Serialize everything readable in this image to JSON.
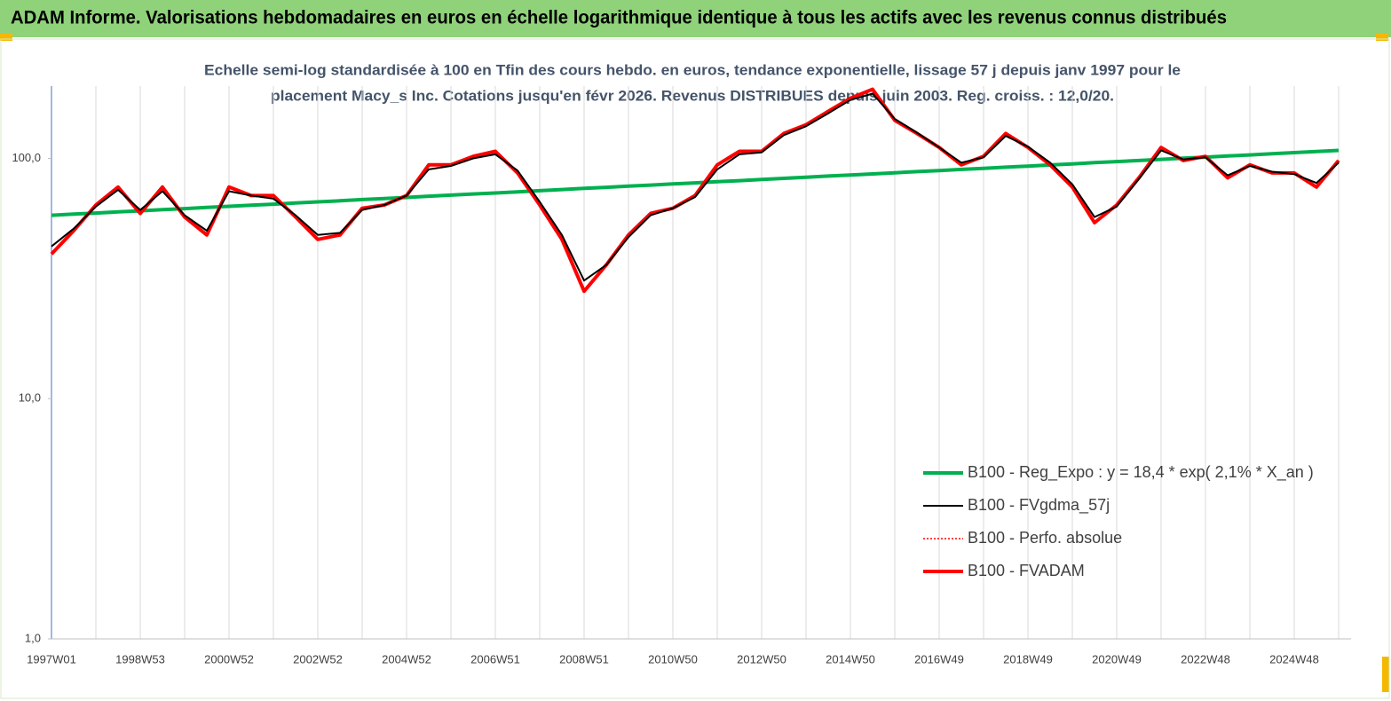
{
  "chart_data": {
    "type": "line",
    "header": "ADAM Informe. Valorisations hebdomadaires en euros en échelle logarithmique identique à tous les actifs avec les revenus connus distribués",
    "subtitle": [
      "Echelle semi-log standardisée à 100 en Tfin des cours hebdo. en euros, tendance exponentielle, lissage 57 j depuis janv 1997 pour le",
      "placement Macy_s Inc. Cotations jusqu'en févr 2026. Revenus DISTRIBUES depuis juin 2003. Reg. croiss. : 12,0/20."
    ],
    "log_scale": true,
    "grid": "x",
    "legend": "bottom-right",
    "ylim": [
      1,
      200
    ],
    "yticks": [
      {
        "value": 1,
        "label": "1,0"
      },
      {
        "value": 10,
        "label": "10,0"
      },
      {
        "value": 100,
        "label": "100,0"
      }
    ],
    "categories": [
      "1997W01",
      null,
      null,
      null,
      "1998W53",
      null,
      null,
      null,
      "2000W52",
      null,
      null,
      null,
      "2002W52",
      null,
      null,
      null,
      "2004W52",
      null,
      null,
      null,
      "2006W51",
      null,
      null,
      null,
      "2008W51",
      null,
      null,
      null,
      "2010W50",
      null,
      null,
      null,
      "2012W50",
      null,
      null,
      null,
      "2014W50",
      null,
      null,
      null,
      "2016W49",
      null,
      null,
      null,
      "2018W49",
      null,
      null,
      null,
      "2020W49",
      null,
      null,
      null,
      "2022W48",
      null,
      null,
      null,
      "2024W48",
      null,
      null
    ],
    "series": [
      {
        "name": "B100 - Reg_Expo : y = 18,4 * exp( 2,1% *  X_an )",
        "color": "#00b050",
        "style": "thick",
        "values": [
          58.0,
          58.6,
          59.2,
          59.9,
          60.5,
          61.2,
          61.8,
          62.5,
          63.2,
          63.8,
          64.5,
          65.2,
          65.9,
          66.6,
          67.4,
          68.1,
          68.8,
          69.6,
          70.3,
          71.1,
          71.8,
          72.6,
          73.4,
          74.2,
          75.0,
          75.8,
          76.6,
          77.4,
          78.3,
          79.1,
          80.0,
          80.8,
          81.7,
          82.6,
          83.5,
          84.4,
          85.3,
          86.2,
          87.1,
          88.1,
          89.0,
          90.0,
          90.9,
          91.9,
          92.9,
          93.9,
          94.9,
          96.0,
          97.0,
          98.0,
          99.1,
          100.2,
          101.2,
          102.3,
          103.4,
          104.6,
          105.7,
          106.8,
          108.0
        ]
      },
      {
        "name": "B100 - FVgdma_57j",
        "color": "#000000",
        "style": "thin",
        "values": [
          43,
          51,
          63,
          74,
          61,
          73,
          58,
          50,
          73,
          70,
          68,
          58,
          48,
          49,
          61,
          64,
          70,
          90,
          93,
          100,
          104,
          89,
          66,
          48,
          31,
          36,
          47,
          58,
          62,
          69,
          90,
          104,
          106,
          125,
          136,
          154,
          175,
          186,
          146,
          128,
          111,
          96,
          101,
          124,
          112,
          96,
          78,
          57,
          63,
          82,
          108,
          99,
          101,
          85,
          93,
          88,
          86,
          79,
          96
        ]
      },
      {
        "name": "B100 - Perfo. absolue",
        "color": "#ff0000",
        "style": "dotted",
        "values": [
          40,
          50,
          64,
          76,
          59,
          76,
          57,
          48,
          76,
          70,
          70,
          57,
          46,
          48,
          62,
          64,
          70,
          94,
          94,
          102,
          107,
          87,
          64,
          46,
          28,
          36,
          48,
          59,
          62,
          70,
          94,
          107,
          107,
          127,
          138,
          157,
          178,
          194,
          144,
          127,
          111,
          94,
          102,
          127,
          111,
          94,
          76,
          54,
          64,
          83,
          111,
          98,
          102,
          83,
          94,
          87,
          87,
          76,
          98
        ]
      },
      {
        "name": "B100 - FVADAM",
        "color": "#ff0000",
        "style": "thick",
        "values": [
          40,
          50,
          64,
          76,
          59,
          76,
          57,
          48,
          76,
          70,
          70,
          57,
          46,
          48,
          62,
          64,
          70,
          94,
          94,
          102,
          107,
          87,
          64,
          46,
          28,
          36,
          48,
          59,
          62,
          70,
          94,
          107,
          107,
          127,
          138,
          157,
          178,
          194,
          144,
          127,
          111,
          94,
          102,
          127,
          111,
          94,
          76,
          54,
          64,
          83,
          111,
          98,
          102,
          83,
          94,
          87,
          87,
          76,
          98
        ]
      }
    ]
  }
}
